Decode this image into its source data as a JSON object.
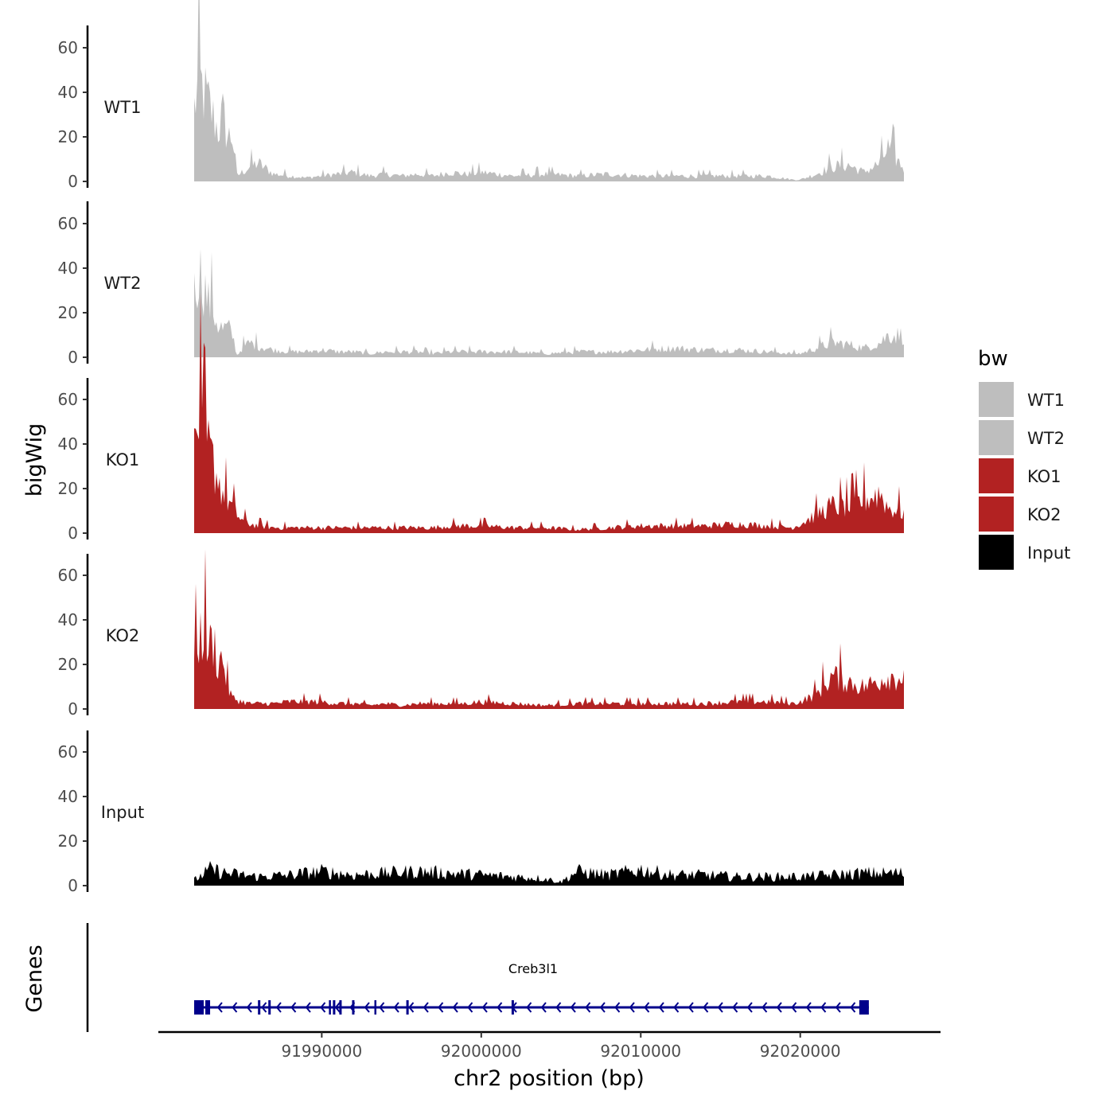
{
  "chart_data": {
    "type": "area",
    "y_axis_title": "bigWig",
    "x_axis_title": "chr2 position (bp)",
    "genes_axis_title": "Genes",
    "region": [
      91982000,
      92026500
    ],
    "ylim": [
      0,
      70
    ],
    "y_ticks": [
      "0",
      "20",
      "40",
      "60"
    ],
    "x_ticks": [
      {
        "value": 91990000,
        "label": "91990000"
      },
      {
        "value": 92000000,
        "label": "92000000"
      },
      {
        "value": 92010000,
        "label": "92010000"
      },
      {
        "value": 92020000,
        "label": "92020000"
      }
    ],
    "legend": {
      "title": "bw",
      "placement": "right",
      "entries": [
        {
          "label": "WT1",
          "color": "#bebebe"
        },
        {
          "label": "WT2",
          "color": "#bebebe"
        },
        {
          "label": "KO1",
          "color": "#b22222"
        },
        {
          "label": "KO2",
          "color": "#b22222"
        },
        {
          "label": "Input",
          "color": "#000000"
        }
      ]
    },
    "series": [
      {
        "name": "WT1",
        "color": "#bebebe",
        "profile": "peaks",
        "x": [
          91982000,
          91982300,
          91982600,
          91982900,
          91983200,
          91983500,
          91983800,
          91984100,
          91984400,
          91984700,
          91985000,
          91985500,
          91986000,
          91987000,
          91988000,
          91989000,
          91990000,
          91991000,
          91992000,
          91993000,
          91994000,
          91995000,
          91996000,
          91997000,
          91998000,
          91999000,
          92000000,
          92002000,
          92004000,
          92006000,
          92008000,
          92010000,
          92012000,
          92014000,
          92016000,
          92018000,
          92019500,
          92020000,
          92021000,
          92022000,
          92023000,
          92024000,
          92025000,
          92025500,
          92026500
        ],
        "y": [
          40,
          55,
          48,
          42,
          35,
          28,
          36,
          24,
          25,
          3,
          5,
          8,
          10,
          4,
          3,
          2,
          3,
          4,
          5,
          3,
          4,
          3,
          4,
          3,
          5,
          4,
          5,
          3,
          4,
          3,
          4,
          3,
          3,
          3,
          3,
          3,
          1,
          1,
          4,
          8,
          9,
          5,
          10,
          18,
          7
        ]
      },
      {
        "name": "WT2",
        "color": "#bebebe",
        "profile": "peaks",
        "x": [
          91982000,
          91982300,
          91982600,
          91982900,
          91983200,
          91983500,
          91983800,
          91984100,
          91984400,
          91984700,
          91985000,
          91985500,
          91986000,
          91987000,
          91988000,
          91989000,
          91990000,
          91991000,
          91992000,
          91993000,
          91994000,
          91995000,
          91996000,
          91997000,
          91998000,
          91999000,
          92000000,
          92002000,
          92004000,
          92006000,
          92008000,
          92010000,
          92012000,
          92014000,
          92016000,
          92018000,
          92019500,
          92020000,
          92021000,
          92022000,
          92023000,
          92024000,
          92025000,
          92025500,
          92026500
        ],
        "y": [
          35,
          48,
          40,
          30,
          25,
          18,
          15,
          16,
          12,
          1,
          5,
          8,
          6,
          4,
          3,
          3,
          4,
          3,
          3,
          2,
          3,
          3,
          3,
          2,
          3,
          3,
          3,
          3,
          2,
          3,
          3,
          4,
          5,
          4,
          4,
          3,
          2,
          2,
          5,
          8,
          7,
          5,
          8,
          12,
          12
        ]
      },
      {
        "name": "KO1",
        "color": "#b22222",
        "profile": "peaks",
        "x": [
          91982000,
          91982300,
          91982600,
          91982900,
          91983200,
          91983500,
          91983800,
          91984100,
          91984400,
          91984700,
          91985000,
          91985500,
          91986000,
          91987000,
          91988000,
          91989000,
          91990000,
          91991000,
          91992000,
          91993000,
          91994000,
          91995000,
          91996000,
          91997000,
          91998000,
          91999000,
          92000000,
          92002000,
          92004000,
          92006000,
          92008000,
          92010000,
          92012000,
          92014000,
          92016000,
          92018000,
          92019500,
          92020000,
          92021000,
          92022000,
          92023000,
          92024000,
          92025000,
          92025500,
          92026500
        ],
        "y": [
          42,
          66,
          48,
          45,
          38,
          30,
          22,
          18,
          14,
          10,
          7,
          5,
          4,
          3,
          3,
          3,
          3,
          3,
          3,
          3,
          3,
          3,
          3,
          3,
          4,
          4,
          4,
          3,
          3,
          2,
          3,
          4,
          4,
          4,
          5,
          4,
          3,
          5,
          10,
          15,
          14,
          18,
          22,
          14,
          11
        ]
      },
      {
        "name": "KO2",
        "color": "#b22222",
        "profile": "peaks",
        "x": [
          91982000,
          91982300,
          91982600,
          91982900,
          91983200,
          91983500,
          91983800,
          91984100,
          91984400,
          91984700,
          91985000,
          91985500,
          91986000,
          91987000,
          91988000,
          91989000,
          91990000,
          91991000,
          91992000,
          91993000,
          91994000,
          91995000,
          91996000,
          91997000,
          91998000,
          91999000,
          92000000,
          92002000,
          92004000,
          92006000,
          92008000,
          92010000,
          92012000,
          92014000,
          92016000,
          92018000,
          92019500,
          92020000,
          92021000,
          92022000,
          92023000,
          92024000,
          92025000,
          92025500,
          92026500
        ],
        "y": [
          28,
          38,
          45,
          32,
          38,
          25,
          28,
          12,
          6,
          5,
          4,
          3,
          3,
          3,
          4,
          4,
          4,
          3,
          3,
          2,
          3,
          2,
          3,
          3,
          3,
          3,
          4,
          3,
          2,
          3,
          3,
          3,
          3,
          3,
          4,
          4,
          3,
          4,
          8,
          18,
          15,
          12,
          16,
          18,
          17
        ]
      },
      {
        "name": "Input",
        "color": "#000000",
        "profile": "noise",
        "x": [
          91982000,
          91983000,
          91984000,
          91986000,
          91988000,
          91990000,
          91992000,
          91994000,
          91996000,
          91998000,
          92000000,
          92002000,
          92004000,
          92005000,
          92006000,
          92008000,
          92010000,
          92012000,
          92014000,
          92016000,
          92018000,
          92020000,
          92022000,
          92024000,
          92026500
        ],
        "y": [
          3,
          9,
          7,
          5,
          6,
          8,
          6,
          7,
          8,
          7,
          6,
          5,
          4,
          2,
          8,
          6,
          9,
          6,
          6,
          5,
          5,
          5,
          6,
          7,
          7
        ]
      }
    ],
    "gene_track": {
      "gene": "Creb3l1",
      "strand": "-",
      "start": 91982000,
      "end": 92024300,
      "color": "#00008b",
      "exons": [
        {
          "start": 91982000,
          "end": 91982600
        },
        {
          "start": 91982700,
          "end": 91983000
        },
        {
          "start": 91986000,
          "end": 91986150
        },
        {
          "start": 91986650,
          "end": 91986800
        },
        {
          "start": 91990450,
          "end": 91990520
        },
        {
          "start": 91990700,
          "end": 91990850
        },
        {
          "start": 91991100,
          "end": 91991250
        },
        {
          "start": 91991900,
          "end": 91992050
        },
        {
          "start": 91993300,
          "end": 91993400
        },
        {
          "start": 91995300,
          "end": 91995450
        },
        {
          "start": 92001900,
          "end": 92002050
        },
        {
          "start": 92023700,
          "end": 92024300
        }
      ]
    }
  }
}
